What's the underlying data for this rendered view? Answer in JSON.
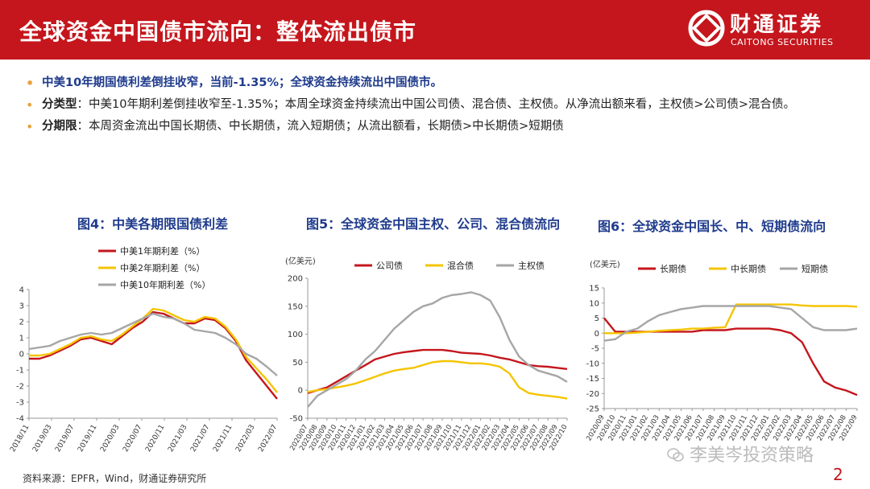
{
  "header": {
    "title": "全球资金中国债市流向：整体流出债市",
    "logo_cn": "财通证券",
    "logo_en": "CAITONG SECURITIES"
  },
  "bullets": [
    {
      "lead": "",
      "text": "中美10年期国债利差倒挂收窄，当前-1.35%；全球资金持续流出中国债市。"
    },
    {
      "lead": "分类型",
      "text": "：中美10年期利差倒挂收窄至-1.35%；本周全球资金持续流出中国公司债、混合债、主权债。从净流出额来看，主权债>公司债>混合债。"
    },
    {
      "lead": "分期限",
      "text": "：本周资金流出中国长期债、中长期债，流入短期债；从流出额看，长期债>中长期债>短期债"
    }
  ],
  "source": "资料来源：EPFR，Wind，财通证券研究所",
  "watermark": "李美岑投资策略",
  "page_number": "2",
  "chart_data": [
    {
      "type": "line",
      "title": "图4：中美各期限国债利差",
      "ylim": [
        -4,
        4
      ],
      "yticks": [
        "-4",
        "-3",
        "-2",
        "-1",
        "0",
        "1",
        "2",
        "3",
        "4"
      ],
      "xticks": [
        "2018/11",
        "2019/03",
        "2019/07",
        "2019/11",
        "2020/03",
        "2020/07",
        "2020/11",
        "2021/03",
        "2021/07",
        "2021/11",
        "2022/03",
        "2022/07"
      ],
      "legend_position": "top-left",
      "series": [
        {
          "name": "中美1年期利差（%）",
          "color": "#c4161c",
          "values": [
            -0.3,
            -0.3,
            -0.1,
            0.2,
            0.5,
            0.9,
            1.0,
            0.8,
            0.6,
            1.1,
            1.6,
            2.0,
            2.6,
            2.5,
            2.2,
            1.9,
            1.9,
            2.2,
            2.1,
            1.6,
            0.8,
            -0.4,
            -1.2,
            -2.0,
            -2.8
          ]
        },
        {
          "name": "中美2年期利差（%）",
          "color": "#f5c400",
          "values": [
            -0.1,
            -0.1,
            0.0,
            0.3,
            0.6,
            1.0,
            1.1,
            0.9,
            0.8,
            1.2,
            1.7,
            2.2,
            2.8,
            2.7,
            2.4,
            2.1,
            2.0,
            2.3,
            2.2,
            1.7,
            0.9,
            -0.2,
            -0.9,
            -1.6,
            -2.4
          ]
        },
        {
          "name": "中美10年期利差（%）",
          "color": "#a6a6a6",
          "values": [
            0.3,
            0.4,
            0.5,
            0.8,
            1.0,
            1.2,
            1.3,
            1.2,
            1.3,
            1.6,
            1.9,
            2.2,
            2.5,
            2.3,
            2.2,
            1.9,
            1.5,
            1.4,
            1.3,
            1.0,
            0.6,
            0.0,
            -0.3,
            -0.8,
            -1.35
          ]
        }
      ]
    },
    {
      "type": "line",
      "title": "图5：全球资金中国主权、公司、混合债流向",
      "ylabel": "(亿美元)",
      "ylim": [
        -50,
        200
      ],
      "yticks": [
        "-50",
        "0",
        "50",
        "100",
        "150",
        "200"
      ],
      "xticks": [
        "2020/07",
        "2020/08",
        "2020/09",
        "2020/10",
        "2020/11",
        "2020/12",
        "2021/01",
        "2021/02",
        "2021/03",
        "2021/04",
        "2021/05",
        "2021/06",
        "2021/07",
        "2021/08",
        "2021/09",
        "2021/10",
        "2021/11",
        "2021/12",
        "2022/01",
        "2022/02",
        "2022/03",
        "2022/04",
        "2022/05",
        "2022/06",
        "2022/07",
        "2022/08",
        "2022/09",
        "2022/10"
      ],
      "legend_position": "top",
      "series": [
        {
          "name": "公司债",
          "color": "#c4161c",
          "values": [
            -5,
            0,
            5,
            15,
            25,
            35,
            45,
            55,
            60,
            65,
            68,
            70,
            72,
            72,
            72,
            70,
            67,
            66,
            65,
            62,
            58,
            55,
            50,
            45,
            43,
            42,
            40,
            38
          ]
        },
        {
          "name": "混合债",
          "color": "#f5c400",
          "values": [
            -3,
            0,
            2,
            5,
            8,
            12,
            18,
            24,
            30,
            35,
            38,
            40,
            45,
            50,
            52,
            52,
            50,
            48,
            48,
            46,
            42,
            30,
            5,
            -5,
            -8,
            -10,
            -12,
            -15
          ]
        },
        {
          "name": "主权债",
          "color": "#a6a6a6",
          "values": [
            -30,
            -10,
            0,
            10,
            20,
            35,
            55,
            70,
            90,
            110,
            125,
            140,
            150,
            155,
            165,
            170,
            172,
            175,
            170,
            160,
            130,
            90,
            60,
            45,
            35,
            30,
            25,
            15
          ]
        }
      ]
    },
    {
      "type": "line",
      "title": "图6：全球资金中国长、中、短期债流向",
      "ylabel": "(亿美元)",
      "ylim": [
        -25,
        15
      ],
      "yticks": [
        "-25",
        "-20",
        "-15",
        "-10",
        "-5",
        "0",
        "5",
        "10",
        "15"
      ],
      "xticks": [
        "2020/09",
        "2020/10",
        "2020/11",
        "2021/01",
        "2021/02",
        "2021/03",
        "2021/04",
        "2021/05",
        "2021/06",
        "2021/07",
        "2021/08",
        "2021/09",
        "2021/10",
        "2021/11",
        "2021/12",
        "2022/01",
        "2022/02",
        "2022/03",
        "2022/04",
        "2022/05",
        "2022/06",
        "2022/07",
        "2022/08",
        "2022/09"
      ],
      "legend_position": "top",
      "series": [
        {
          "name": "长期债",
          "color": "#c4161c",
          "values": [
            5,
            0.5,
            0.5,
            0.5,
            0.5,
            0.5,
            0.5,
            0.5,
            0.5,
            1,
            1,
            1,
            1.5,
            1.5,
            1.5,
            1.5,
            1,
            0,
            -3,
            -10,
            -16,
            -18,
            -19,
            -20.5
          ]
        },
        {
          "name": "中长期债",
          "color": "#f5c400",
          "values": [
            0,
            0,
            0,
            0.2,
            0.5,
            0.8,
            1,
            1.2,
            1.5,
            1.5,
            1.8,
            2,
            9.5,
            9.5,
            9.5,
            9.5,
            9.5,
            9.5,
            9.2,
            9,
            9,
            9,
            9,
            8.8
          ]
        },
        {
          "name": "短期债",
          "color": "#a6a6a6",
          "values": [
            -2.5,
            -2,
            0.5,
            1.5,
            4,
            6,
            7,
            8,
            8.5,
            9,
            9,
            9,
            9,
            9,
            9,
            9,
            8.5,
            8,
            5,
            2,
            1,
            1,
            1,
            1.5
          ]
        }
      ]
    }
  ]
}
